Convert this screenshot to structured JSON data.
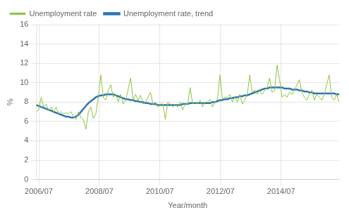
{
  "chart_data": {
    "type": "line",
    "xlabel": "Year/month",
    "ylabel": "%",
    "x": [
      2006.5,
      2006.582,
      2006.6639,
      2006.7459,
      2006.8279,
      2006.9098,
      2006.9918,
      2007.0738,
      2007.1557,
      2007.2377,
      2007.3197,
      2007.4016,
      2007.4836,
      2007.5656,
      2007.6475,
      2007.7295,
      2007.8115,
      2007.8934,
      2007.9754,
      2008.0574,
      2008.1393,
      2008.2213,
      2008.3033,
      2008.3852,
      2008.4672,
      2008.5492,
      2008.6311,
      2008.7131,
      2008.7951,
      2008.877,
      2008.959,
      2009.041,
      2009.123,
      2009.2049,
      2009.2869,
      2009.3689,
      2009.4508,
      2009.5328,
      2009.6148,
      2009.6967,
      2009.7787,
      2009.8607,
      2009.9426,
      2010.0246,
      2010.1066,
      2010.1885,
      2010.2705,
      2010.3525,
      2010.4344,
      2010.5164,
      2010.5984,
      2010.6803,
      2010.7623,
      2010.8443,
      2010.9262,
      2011.0082,
      2011.0902,
      2011.1721,
      2011.2541,
      2011.3361,
      2011.418,
      2011.5,
      2011.582,
      2011.6639,
      2011.7459,
      2011.8279,
      2011.9098,
      2011.9918,
      2012.0738,
      2012.1557,
      2012.2377,
      2012.3197,
      2012.4016,
      2012.4836,
      2012.5656,
      2012.6475,
      2012.7295,
      2012.8115,
      2012.8934,
      2012.9754,
      2013.0574,
      2013.1393,
      2013.2213,
      2013.3033,
      2013.3852,
      2013.4672,
      2013.5492,
      2013.6311,
      2013.7131,
      2013.7951,
      2013.877,
      2013.959,
      2014.041,
      2014.123,
      2014.2049,
      2014.2869,
      2014.3689,
      2014.4508,
      2014.5328,
      2014.6148,
      2014.6967,
      2014.7787,
      2014.8607,
      2014.9426,
      2015.0246,
      2015.1066,
      2015.1885,
      2015.2705,
      2015.3525,
      2015.4344,
      2015.5164,
      2015.5984,
      2015.6803,
      2015.7623,
      2015.8443,
      2015.9262,
      2016.0082,
      2016.0902,
      2016.1721,
      2016.2541,
      2016.3361,
      2016.418,
      2016.5
    ],
    "series": [
      {
        "name": "Unemployment rate",
        "color": "#8dc63f",
        "values": [
          7.0,
          7.2,
          8.5,
          7.5,
          7.8,
          7.1,
          7.5,
          7.0,
          7.5,
          6.8,
          7.0,
          6.8,
          6.9,
          6.8,
          7.0,
          6.5,
          6.2,
          7.0,
          6.4,
          6.2,
          5.2,
          7.0,
          7.5,
          6.3,
          6.8,
          8.5,
          10.8,
          8.5,
          8.2,
          9.2,
          9.8,
          8.5,
          8.8,
          8.0,
          8.8,
          7.8,
          8.2,
          9.3,
          10.5,
          8.2,
          8.8,
          8.2,
          8.7,
          7.8,
          8.0,
          8.5,
          9.0,
          7.8,
          8.0,
          7.5,
          7.8,
          7.8,
          6.2,
          8.0,
          7.8,
          7.5,
          7.8,
          7.5,
          8.0,
          7.2,
          7.8,
          7.8,
          9.5,
          7.8,
          8.0,
          7.8,
          8.2,
          7.5,
          8.0,
          8.0,
          8.3,
          7.5,
          8.0,
          8.3,
          10.8,
          8.3,
          8.5,
          8.5,
          8.8,
          8.0,
          8.5,
          8.0,
          8.8,
          7.8,
          8.2,
          8.8,
          10.8,
          9.0,
          9.2,
          8.8,
          9.2,
          8.8,
          9.2,
          9.5,
          10.5,
          9.0,
          9.2,
          11.8,
          10.3,
          8.5,
          8.8,
          8.5,
          9.0,
          8.8,
          9.2,
          9.8,
          10.3,
          9.0,
          8.5,
          8.2,
          8.8,
          9.2,
          8.2,
          8.8,
          8.5,
          8.2,
          8.8,
          9.8,
          10.8,
          8.5,
          8.2,
          8.8,
          8.0
        ]
      },
      {
        "name": "Unemployment rate, trend",
        "color": "#2e75b6",
        "values": [
          7.7,
          7.6,
          7.5,
          7.4,
          7.3,
          7.2,
          7.1,
          7.0,
          6.9,
          6.8,
          6.7,
          6.6,
          6.5,
          6.5,
          6.4,
          6.4,
          6.5,
          6.7,
          7.0,
          7.3,
          7.6,
          7.9,
          8.1,
          8.3,
          8.5,
          8.6,
          8.7,
          8.7,
          8.8,
          8.8,
          8.8,
          8.8,
          8.7,
          8.6,
          8.5,
          8.4,
          8.3,
          8.3,
          8.2,
          8.2,
          8.1,
          8.1,
          8.0,
          8.0,
          7.9,
          7.9,
          7.8,
          7.8,
          7.8,
          7.7,
          7.7,
          7.7,
          7.7,
          7.7,
          7.7,
          7.7,
          7.7,
          7.7,
          7.7,
          7.8,
          7.8,
          7.8,
          7.9,
          7.9,
          7.9,
          7.9,
          7.9,
          7.9,
          7.9,
          7.9,
          7.9,
          8.0,
          8.0,
          8.1,
          8.2,
          8.2,
          8.3,
          8.3,
          8.4,
          8.4,
          8.5,
          8.5,
          8.6,
          8.6,
          8.7,
          8.7,
          8.8,
          8.9,
          9.0,
          9.1,
          9.2,
          9.3,
          9.4,
          9.4,
          9.5,
          9.5,
          9.5,
          9.5,
          9.5,
          9.5,
          9.4,
          9.4,
          9.4,
          9.3,
          9.3,
          9.3,
          9.2,
          9.2,
          9.1,
          9.1,
          9.0,
          9.0,
          8.9,
          8.9,
          8.9,
          8.9,
          8.9,
          8.9,
          8.9,
          8.9,
          8.9,
          8.8,
          8.8
        ]
      }
    ],
    "xlim": [
      2006.5,
      2016.5
    ],
    "xticks": [
      {
        "value": 2006.583,
        "label": "2006/07"
      },
      {
        "value": 2008.583,
        "label": "2008/07"
      },
      {
        "value": 2010.583,
        "label": "2010/07"
      },
      {
        "value": 2012.583,
        "label": "2012/07"
      },
      {
        "value": 2014.583,
        "label": "2014/07"
      }
    ],
    "ylim": [
      0,
      16
    ],
    "yticks": [
      0,
      2,
      4,
      6,
      8,
      10,
      12,
      14,
      16
    ],
    "grid": true,
    "legend": "upper left"
  }
}
